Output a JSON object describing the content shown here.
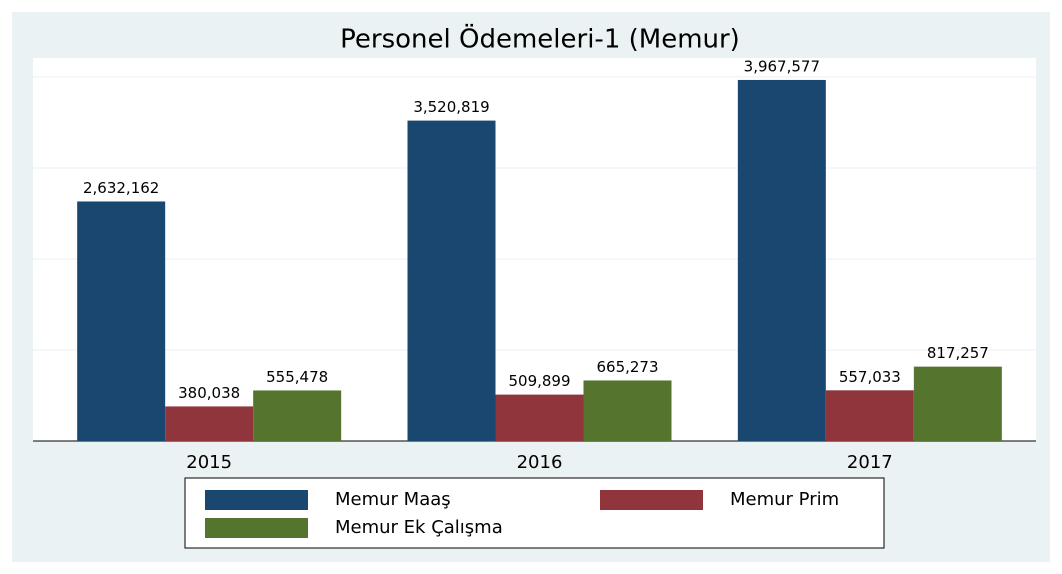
{
  "chart_data": {
    "type": "bar",
    "title": "Personel Ödemeleri-1 (Memur)",
    "categories": [
      "2015",
      "2016",
      "2017"
    ],
    "series": [
      {
        "name": "Memur Maaş",
        "color": "#1a476f",
        "values": [
          2632162,
          3520819,
          3967577
        ],
        "value_labels": [
          "2,632,162",
          "3,520,819",
          "3,967,577"
        ]
      },
      {
        "name": "Memur Prim",
        "color": "#90353b",
        "values": [
          380038,
          509899,
          557033
        ],
        "value_labels": [
          "380,038",
          "509,899",
          "557,033"
        ]
      },
      {
        "name": "Memur Ek Çalışma",
        "color": "#55752f",
        "values": [
          555478,
          665273,
          817257
        ],
        "value_labels": [
          "555,478",
          "665,273",
          "817,257"
        ]
      }
    ],
    "ylim": [
      0,
      4000000
    ],
    "yticks": [
      0,
      1000000,
      2000000,
      3000000,
      4000000
    ],
    "grid": true,
    "legend": "bottom"
  }
}
